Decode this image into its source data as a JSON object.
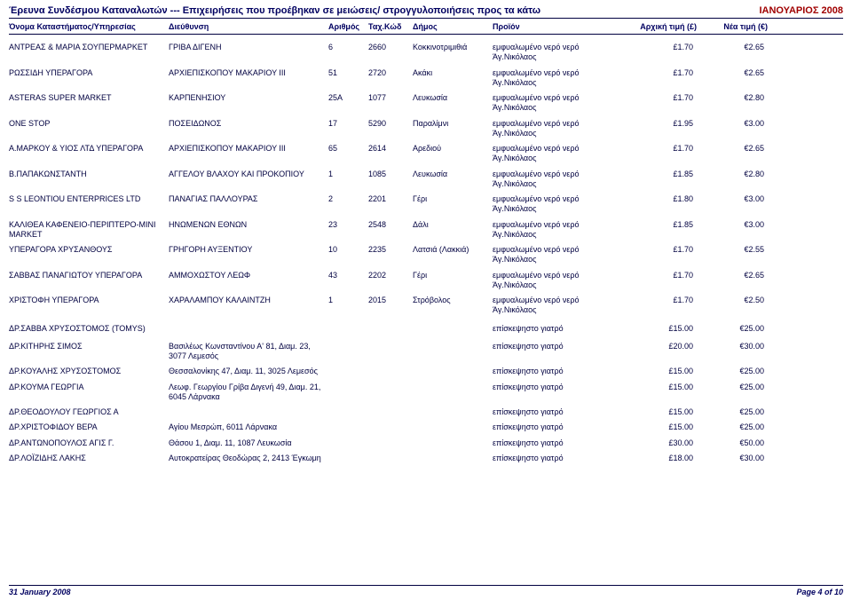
{
  "header": {
    "title_left": "Έρευνα Συνδέσμου Καταναλωτών --- Επιχειρήσεις που προέβηκαν σε μειώσεις/ στρογγυλοποιήσεις προς τα κάτω",
    "title_right": "ΙΑΝΟΥΑΡΙΟΣ 2008"
  },
  "columns": {
    "c1": "Όνομα Καταστήματος/Υπηρεσίας",
    "c2": "Διεύθυνση",
    "c3": "Αριθμός",
    "c4": "Ταχ.Κώδ",
    "c5": "Δήμος",
    "c6": "Προϊόν",
    "c7": "Αρχική τιμή (£)",
    "c8": "Νέα τιμή (€)"
  },
  "rows": [
    {
      "name": "ΑΝΤΡΕΑΣ & ΜΑΡΙΑ ΣΟΥΠΕΡΜΑΡΚΕΤ",
      "addr": "ΓΡΙΒΑ ΔΙΓΕΝΗ",
      "num": "6",
      "zip": "2660",
      "city": "Κοκκινοτριμιθιά",
      "prod": "εμφυαλωμένο νερό νερό Άγ.Νικόλαος",
      "p1": "£1.70",
      "p2": "€2.65"
    },
    {
      "name": "ΡΩΣΣΙΔΗ ΥΠΕΡΑΓΟΡΑ",
      "addr": "ΑΡΧΙΕΠΙΣΚΟΠΟΥ ΜΑΚΑΡΙΟΥ ΙΙΙ",
      "num": "51",
      "zip": "2720",
      "city": "Ακάκι",
      "prod": "εμφυαλωμένο νερό νερό Άγ.Νικόλαος",
      "p1": "£1.70",
      "p2": "€2.65"
    },
    {
      "name": "ASTERAS SUPER MARKET",
      "addr": "ΚΑΡΠΕΝΗΣΙΟΥ",
      "num": "25Α",
      "zip": "1077",
      "city": "Λευκωσία",
      "prod": "εμφυαλωμένο νερό νερό Άγ.Νικόλαος",
      "p1": "£1.70",
      "p2": "€2.80"
    },
    {
      "name": "ONE STOP",
      "addr": "ΠΟΣΕΙΔΩΝΟΣ",
      "num": "17",
      "zip": "5290",
      "city": "Παραλίμνι",
      "prod": "εμφυαλωμένο νερό νερό Άγ.Νικόλαος",
      "p1": "£1.95",
      "p2": "€3.00"
    },
    {
      "name": "Α.ΜΑΡΚΟΥ & ΥΙΟΣ ΛΤΔ ΥΠΕΡΑΓΟΡΑ",
      "addr": "ΑΡΧΙΕΠΙΣΚΟΠΟΥ ΜΑΚΑΡΙΟΥ ΙΙΙ",
      "num": "65",
      "zip": "2614",
      "city": "Αρεδιού",
      "prod": "εμφυαλωμένο νερό νερό Άγ.Νικόλαος",
      "p1": "£1.70",
      "p2": "€2.65"
    },
    {
      "name": "Β.ΠΑΠΑΚΩΝΣΤΑΝΤΗ",
      "addr": "ΑΓΓΕΛΟΥ ΒΛΑΧΟΥ ΚΑΙ ΠΡΟΚΟΠΙΟΥ",
      "num": "1",
      "zip": "1085",
      "city": "Λευκωσία",
      "prod": "εμφυαλωμένο νερό νερό Άγ.Νικόλαος",
      "p1": "£1.85",
      "p2": "€2.80"
    },
    {
      "name": "S S LEONTIOU ENTERPRICES LTD",
      "addr": "ΠΑΝΑΓΙΑΣ ΠΑΛΛΟΥΡΑΣ",
      "num": "2",
      "zip": "2201",
      "city": "Γέρι",
      "prod": "εμφυαλωμένο νερό νερό Άγ.Νικόλαος",
      "p1": "£1.80",
      "p2": "€3.00"
    },
    {
      "name": "ΚΑΛΙΘΕΑ ΚΑΦΕΝΕΙΟ-ΠΕΡΙΠΤΕΡΟ-ΜΙΝΙ MARKET",
      "addr": "ΗΝΩΜΕΝΩΝ ΕΘΝΩΝ",
      "num": "23",
      "zip": "2548",
      "city": "Δάλι",
      "prod": "εμφυαλωμένο νερό νερό Άγ.Νικόλαος",
      "p1": "£1.85",
      "p2": "€3.00"
    },
    {
      "name": "ΥΠΕΡΑΓΟΡΑ ΧΡΥΣΑΝΘΟΥΣ",
      "addr": "ΓΡΗΓΟΡΗ ΑΥΞΕΝΤΙΟΥ",
      "num": "10",
      "zip": "2235",
      "city": "Λατσιά (Λακκιά)",
      "prod": "εμφυαλωμένο νερό νερό Άγ.Νικόλαος",
      "p1": "£1.70",
      "p2": "€2.55"
    },
    {
      "name": "ΣΑΒΒΑΣ ΠΑΝΑΓΙΩΤΟΥ ΥΠΕΡΑΓΟΡΑ",
      "addr": "ΑΜΜΟΧΩΣΤΟΥ ΛΕΩΦ",
      "num": "43",
      "zip": "2202",
      "city": "Γέρι",
      "prod": "εμφυαλωμένο νερό νερό Άγ.Νικόλαος",
      "p1": "£1.70",
      "p2": "€2.65"
    },
    {
      "name": "ΧΡΙΣΤΟΦΗ ΥΠΕΡΑΓΟΡΑ",
      "addr": "ΧΑΡΑΛΑΜΠΟΥ ΚΑΛΑΙΝΤΖΗ",
      "num": "1",
      "zip": "2015",
      "city": "Στρόβολος",
      "prod": "εμφυαλωμένο νερό νερό Άγ.Νικόλαος",
      "p1": "£1.70",
      "p2": "€2.50"
    },
    {
      "name": "ΔΡ.ΣΑΒΒΑ ΧΡΥΣΟΣΤΟΜΟΣ (TOMYS)",
      "addr": "",
      "num": "",
      "zip": "",
      "city": "",
      "prod": "επίσκεψηστο γιατρό",
      "p1": "£15.00",
      "p2": "€25.00"
    },
    {
      "name": "ΔΡ.ΚΙΤΗΡΗΣ ΣΙΜΟΣ",
      "addr": "Βασιλέως Κωνσταντίνου Α' 81, Διαμ. 23, 3077 Λεμεσός",
      "num": "",
      "zip": "",
      "city": "",
      "prod": "επίσκεψηστο γιατρό",
      "p1": "£20.00",
      "p2": "€30.00"
    },
    {
      "name": "ΔΡ.ΚΟΥΑΛΗΣ ΧΡΥΣΟΣΤΟΜΟΣ",
      "addr": "Θεσσαλονίκης 47, Διαμ. 11, 3025 Λεμεσός",
      "num": "",
      "zip": "",
      "city": "",
      "prod": "επίσκεψηστο γιατρό",
      "p1": "£15.00",
      "p2": "€25.00"
    },
    {
      "name": "ΔΡ.ΚΟΥΜΑ ΓΕΩΡΓΙΑ",
      "addr": "Λεωφ. Γεωργίου Γρίβα Διγενή 49, Διαμ. 21, 6045 Λάρνακα",
      "num": "",
      "zip": "",
      "city": "",
      "prod": "επίσκεψηστο γιατρό",
      "p1": "£15.00",
      "p2": "€25.00"
    },
    {
      "name": "ΔΡ.ΘΕΟΔΟΥΛΟΥ ΓΕΩΡΓΙΟΣ Α",
      "addr": "",
      "num": "",
      "zip": "",
      "city": "",
      "prod": "επίσκεψηστο γιατρό",
      "p1": "£15.00",
      "p2": "€25.00"
    },
    {
      "name": "ΔΡ.ΧΡΙΣΤΟΦΙΔΟΥ ΒΕΡΑ",
      "addr": "Αγίου Μεσρώπ, 6011 Λάρνακα",
      "num": "",
      "zip": "",
      "city": "",
      "prod": "επίσκεψηστο γιατρό",
      "p1": "£15.00",
      "p2": "€25.00"
    },
    {
      "name": "ΔΡ.ΑΝΤΩΝΟΠΟΥΛΟΣ ΑΓΙΣ Γ.",
      "addr": "Θάσου 1, Διαμ. 11, 1087 Λευκωσία",
      "num": "",
      "zip": "",
      "city": "",
      "prod": "επίσκεψηστο γιατρό",
      "p1": "£30.00",
      "p2": "€50.00"
    },
    {
      "name": "ΔΡ.ΛΟΪΖΙΔΗΣ ΛΑΚΗΣ",
      "addr": "Αυτοκρατείρας Θεοδώρας 2, 2413 Έγκωμη",
      "num": "",
      "zip": "",
      "city": "",
      "prod": "επίσκεψηστο γιατρό",
      "p1": "£18.00",
      "p2": "€30.00"
    }
  ],
  "footer": {
    "left": "31 January 2008",
    "right": "Page 4 of 10"
  }
}
